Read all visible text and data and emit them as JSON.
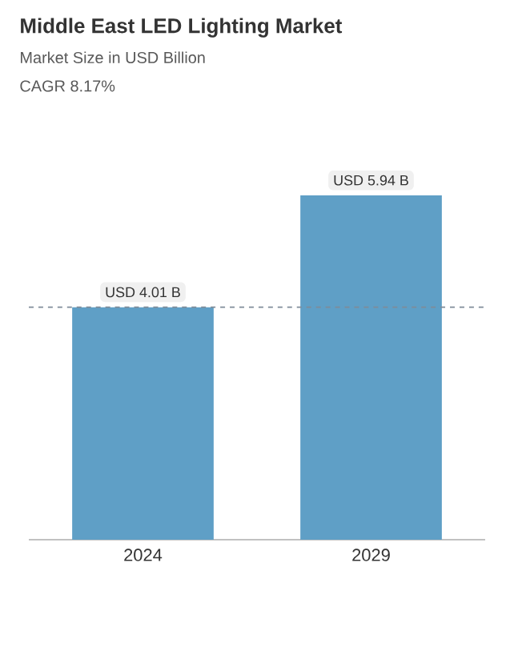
{
  "chart_data": {
    "type": "bar",
    "title": "Middle East LED Lighting Market",
    "subtitle": "Market Size in USD Billion",
    "annotations": [
      "CAGR 8.17%"
    ],
    "categories": [
      "2024",
      "2029"
    ],
    "values": [
      4.01,
      5.94
    ],
    "value_labels": [
      "USD 4.01 B",
      "USD 5.94 B"
    ],
    "color": "#5f9fc6",
    "ref_lines": [
      {
        "axis": "y",
        "value": 4.01,
        "line_style": "dashed",
        "color": "#7f8c99"
      }
    ],
    "grid": false,
    "tick_labels": "x"
  }
}
